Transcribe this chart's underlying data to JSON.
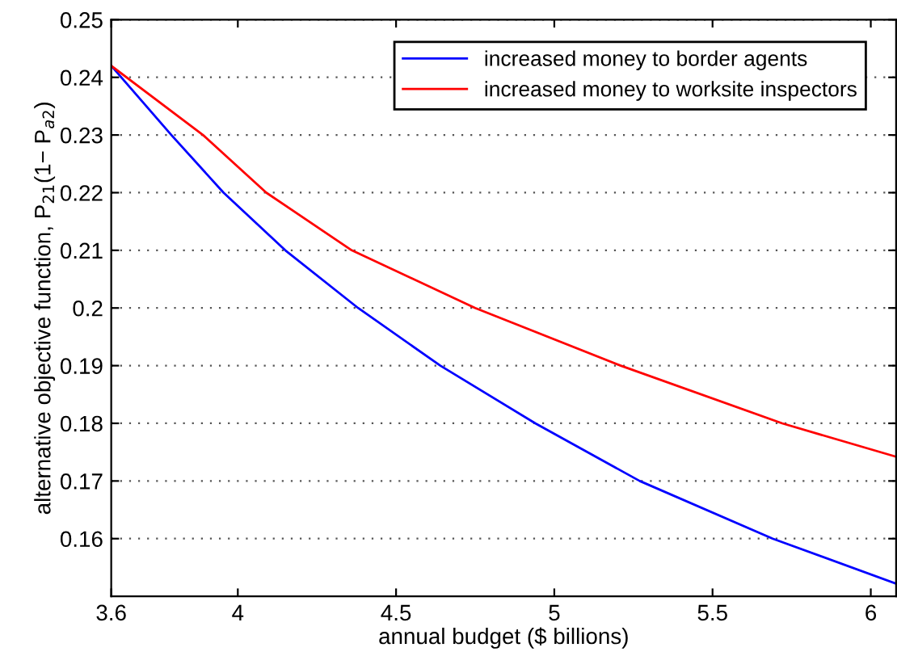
{
  "chart_data": {
    "type": "line",
    "xlabel": "annual budget ($ billions)",
    "ylabel": "alternative objective function, P$_{21}$(1− P$_{a2}$)",
    "series": [
      {
        "name": "increased money to border agents",
        "color": "#0000ff",
        "x": [
          3.6,
          3.79,
          3.955,
          4.15,
          4.38,
          4.64,
          4.94,
          5.27,
          5.69,
          6.08
        ],
        "values": [
          0.242,
          0.23,
          0.22,
          0.21,
          0.2,
          0.19,
          0.18,
          0.17,
          0.16,
          0.1522
        ]
      },
      {
        "name": "increased money to worksite inspectors",
        "color": "#ff0000",
        "x": [
          3.6,
          3.89,
          4.09,
          4.36,
          4.75,
          5.21,
          5.72,
          6.08
        ],
        "values": [
          0.242,
          0.23,
          0.22,
          0.21,
          0.2,
          0.19,
          0.18,
          0.1742
        ]
      }
    ],
    "xlim": [
      3.6,
      6.08
    ],
    "xticks": [
      3.6,
      4,
      4.5,
      5,
      5.5,
      6
    ],
    "ylim": [
      0.15,
      0.25
    ],
    "yticks": [
      0.16,
      0.17,
      0.18,
      0.19,
      0.2,
      0.21,
      0.22,
      0.23,
      0.24,
      0.25
    ],
    "grid": "y",
    "legend": "top right",
    "line_style": "solid",
    "marker": "none"
  }
}
